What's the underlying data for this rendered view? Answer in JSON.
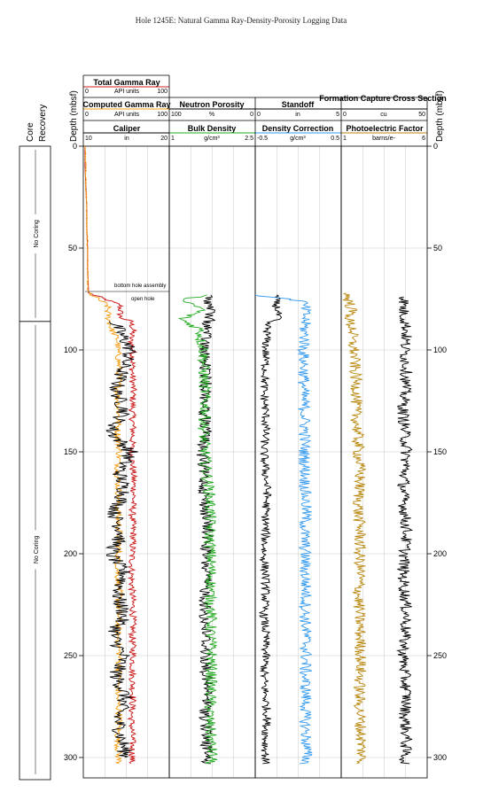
{
  "title": "Hole 1245E: Natural Gamma Ray-Density-Porosity Logging Data",
  "left_panel": {
    "core_label": "Core",
    "recovery_label": "Recovery",
    "segments": [
      {
        "top": 0,
        "bottom": 86,
        "label": "No Coring"
      },
      {
        "top": 86,
        "bottom": 310,
        "label": "No Coring"
      }
    ]
  },
  "depth_axis": {
    "label": "Depth (mbsf)",
    "ticks": [
      "0",
      "50",
      "100",
      "150",
      "200",
      "250",
      "300"
    ]
  },
  "track_headers": [
    {
      "curves": [
        {
          "name": "Total Gamma Ray",
          "unit": "API units",
          "min": "0",
          "max": "100",
          "color": "#cc2222"
        },
        {
          "name": "Computed Gamma Ray",
          "unit": "API units",
          "min": "0",
          "max": "100",
          "color": "#f39c12"
        },
        {
          "name": "Caliper",
          "unit": "in",
          "min": "10",
          "max": "20",
          "color": "#000000"
        }
      ]
    },
    {
      "curves": [
        {
          "name": "Neutron Porosity",
          "unit": "%",
          "min": "100",
          "max": "0",
          "color": "#000000"
        },
        {
          "name": "Bulk Density",
          "unit": "g/cm³",
          "min": "1",
          "max": "2.5",
          "color": "#22aa22"
        }
      ]
    },
    {
      "curves": [
        {
          "name": "Standoff",
          "unit": "in",
          "min": "0",
          "max": "5",
          "color": "#000000"
        },
        {
          "name": "Density Correction",
          "unit": "g/cm³",
          "min": "-0.5",
          "max": "0.5",
          "color": "#3399ee"
        }
      ]
    },
    {
      "curves": [
        {
          "name": "Formation Capture Cross Section",
          "unit": "cu",
          "min": "0",
          "max": "50",
          "color": "#000000"
        },
        {
          "name": "Photoelectric Factor",
          "unit": "barns/e-",
          "min": "1",
          "max": "6",
          "color": "#b8860b"
        }
      ]
    }
  ],
  "annotations": [
    "bottom hole assembly",
    "open hole"
  ],
  "chart_data": {
    "type": "line",
    "y_axis": {
      "label": "Depth (mbsf)",
      "range": [
        0,
        310
      ],
      "inverted": true
    },
    "series": [
      {
        "name": "Total Gamma Ray",
        "range": [
          0,
          100
        ],
        "depth": [
          0,
          10,
          20,
          30,
          40,
          50,
          60,
          70,
          72,
          78,
          84,
          86,
          90,
          95,
          100,
          110,
          120,
          130,
          140,
          150,
          160,
          170,
          180,
          190,
          200,
          210,
          220,
          230,
          240,
          250,
          260,
          270,
          280,
          290,
          300,
          303
        ],
        "values": [
          2,
          2,
          3,
          4,
          4,
          5,
          5,
          6,
          6,
          43,
          43,
          55,
          58,
          55,
          58,
          57,
          58,
          57,
          58,
          56,
          58,
          59,
          57,
          58,
          57,
          56,
          57,
          58,
          57,
          58,
          57,
          58,
          56,
          57,
          57,
          56
        ]
      },
      {
        "name": "Computed Gamma Ray",
        "range": [
          0,
          100
        ],
        "depth": [
          0,
          10,
          20,
          30,
          40,
          50,
          60,
          70,
          72,
          78,
          84,
          90,
          95,
          100,
          110,
          120,
          130,
          140,
          150,
          160,
          170,
          180,
          190,
          200,
          210,
          220,
          230,
          240,
          250,
          260,
          270,
          280,
          290,
          300,
          303
        ],
        "values": [
          2,
          3,
          3,
          4,
          4,
          5,
          5,
          5,
          6,
          28,
          29,
          33,
          40,
          40,
          42,
          40,
          41,
          40,
          42,
          40,
          41,
          40,
          42,
          41,
          40,
          42,
          41,
          40,
          42,
          41,
          40,
          42,
          40,
          41,
          42
        ]
      },
      {
        "name": "Caliper",
        "range": [
          10,
          20
        ],
        "depth": [
          86,
          95,
          100,
          110,
          120,
          130,
          140,
          150,
          160,
          170,
          180,
          190,
          200,
          210,
          220,
          230,
          240,
          250,
          260,
          270,
          280,
          290,
          300
        ],
        "values": [
          13.5,
          14.8,
          15.5,
          14.5,
          13.8,
          14.8,
          13.2,
          15.5,
          14.2,
          14.8,
          13.6,
          14.5,
          13.2,
          14.8,
          14.0,
          14.7,
          13.5,
          14.6,
          13.8,
          14.9,
          14.0,
          14.4,
          15.0
        ]
      },
      {
        "name": "Neutron Porosity",
        "range": [
          100,
          0
        ],
        "depth": [
          73,
          80,
          90,
          100,
          110,
          120,
          130,
          140,
          150,
          160,
          170,
          180,
          190,
          200,
          210,
          220,
          230,
          240,
          250,
          260,
          270,
          280,
          290,
          300,
          303
        ],
        "values": [
          55,
          52,
          56,
          60,
          58,
          57,
          59,
          57,
          62,
          60,
          59,
          58,
          55,
          58,
          57,
          58,
          59,
          57,
          58,
          57,
          56,
          58,
          57,
          56,
          57
        ]
      },
      {
        "name": "Bulk Density",
        "range": [
          1,
          2.5
        ],
        "depth": [
          73,
          76,
          80,
          85,
          90,
          95,
          100,
          110,
          120,
          130,
          140,
          150,
          160,
          170,
          180,
          190,
          200,
          210,
          220,
          230,
          240,
          250,
          260,
          270,
          280,
          290,
          300,
          303
        ],
        "values": [
          1.6,
          1.2,
          1.6,
          1.2,
          1.55,
          1.55,
          1.6,
          1.6,
          1.62,
          1.63,
          1.6,
          1.62,
          1.65,
          1.7,
          1.72,
          1.7,
          1.72,
          1.73,
          1.72,
          1.73,
          1.72,
          1.74,
          1.73,
          1.72,
          1.7,
          1.72,
          1.75,
          1.72
        ]
      },
      {
        "name": "Standoff",
        "range": [
          0,
          5
        ],
        "depth": [
          73,
          75,
          78,
          80,
          85,
          86,
          90,
          100,
          110,
          120,
          130,
          140,
          150,
          160,
          170,
          180,
          190,
          200,
          210,
          220,
          230,
          240,
          250,
          260,
          270,
          280,
          290,
          300,
          303
        ],
        "values": [
          1.2,
          1.2,
          1.2,
          1.3,
          1.3,
          0.7,
          0.7,
          0.6,
          0.6,
          0.5,
          0.6,
          0.6,
          0.5,
          0.6,
          0.7,
          0.6,
          0.6,
          0.5,
          0.6,
          0.6,
          0.5,
          0.6,
          0.6,
          0.5,
          0.6,
          0.7,
          0.6,
          0.6,
          0.6
        ]
      },
      {
        "name": "Density Correction",
        "range": [
          -0.5,
          0.5
        ],
        "depth": [
          73,
          76,
          80,
          86,
          90,
          95,
          100,
          110,
          120,
          130,
          140,
          150,
          160,
          170,
          180,
          190,
          200,
          210,
          220,
          230,
          240,
          250,
          260,
          270,
          280,
          290,
          300,
          303
        ],
        "values": [
          -0.5,
          0.05,
          0.08,
          0.08,
          0.07,
          0.08,
          0.06,
          0.07,
          0.06,
          0.07,
          0.08,
          0.07,
          0.08,
          0.08,
          0.09,
          0.07,
          0.08,
          0.08,
          0.09,
          0.08,
          0.09,
          0.09,
          0.08,
          0.09,
          0.08,
          0.09,
          0.1,
          0.08
        ]
      },
      {
        "name": "Photoelectric Factor",
        "range": [
          1,
          6
        ],
        "depth": [
          72,
          76,
          80,
          86,
          90,
          95,
          100,
          110,
          120,
          130,
          140,
          150,
          160,
          170,
          180,
          190,
          200,
          210,
          220,
          230,
          240,
          250,
          260,
          270,
          280,
          290,
          300,
          303
        ],
        "values": [
          1.3,
          1.45,
          1.6,
          1.45,
          1.7,
          1.6,
          1.75,
          1.8,
          1.9,
          1.85,
          1.95,
          2.0,
          2.1,
          2.05,
          2.0,
          2.1,
          2.05,
          2.1,
          2.0,
          2.05,
          2.1,
          2.15,
          2.1,
          2.05,
          2.1,
          2.15,
          2.2,
          2.1
        ]
      },
      {
        "name": "Formation Capture Cross Section",
        "range": [
          0,
          50
        ],
        "depth": [
          74,
          80,
          90,
          100,
          110,
          120,
          130,
          140,
          150,
          160,
          170,
          180,
          190,
          200,
          210,
          220,
          230,
          240,
          250,
          260,
          270,
          280,
          290,
          300,
          303
        ],
        "values": [
          37,
          36,
          38,
          37,
          38,
          37,
          36,
          37,
          38,
          37,
          36,
          37,
          38,
          37,
          36,
          37,
          38,
          37,
          36,
          37,
          38,
          37,
          38,
          37,
          37
        ]
      }
    ]
  }
}
